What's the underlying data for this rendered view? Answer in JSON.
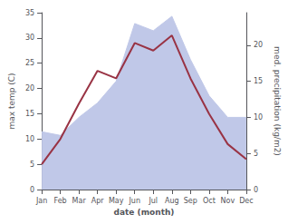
{
  "chart_data": {
    "type": "line",
    "xlabel": "date (month)",
    "ylabel": "max temp (C)",
    "y2label": "med. precipitation (kg/m2)",
    "categories": [
      "Jan",
      "Feb",
      "Mar",
      "Apr",
      "May",
      "Jun",
      "Jul",
      "Aug",
      "Sep",
      "Oct",
      "Nov",
      "Dec"
    ],
    "series": [
      {
        "type": "area",
        "axis": "y2",
        "color": "#c0c8e8",
        "values": [
          8,
          7.5,
          10,
          12,
          15,
          23,
          22,
          24,
          18,
          13,
          10,
          10
        ]
      },
      {
        "type": "line",
        "color": "#993344",
        "values": [
          5,
          10,
          17,
          23.5,
          22,
          29,
          27.5,
          30.5,
          22,
          15,
          9,
          6
        ]
      }
    ],
    "ylim": [
      0,
      35
    ],
    "yticks": [
      0,
      5,
      10,
      15,
      20,
      25,
      30,
      35
    ],
    "y2lim": [
      0,
      24.5
    ],
    "y2ticks": [
      0,
      5,
      10,
      15,
      20
    ],
    "grid": false
  }
}
